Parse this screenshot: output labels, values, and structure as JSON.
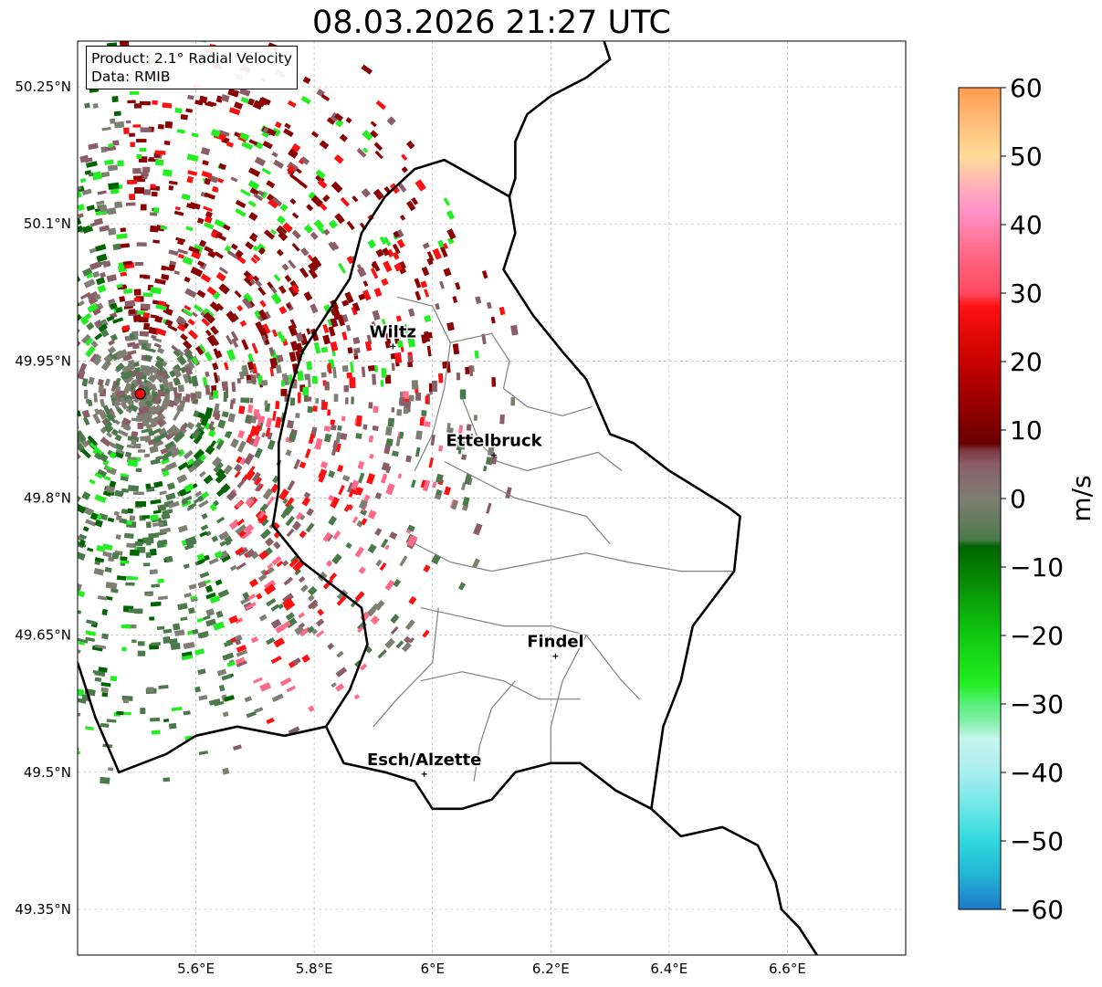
{
  "title": "08.03.2026 21:27 UTC",
  "info_box": {
    "line1": "Product: 2.1° Radial Velocity",
    "line2": "Data: RMIB"
  },
  "map": {
    "lon_range": [
      5.4,
      6.8
    ],
    "lat_range": [
      49.3,
      50.3
    ],
    "lon_ticks": [
      {
        "value": 5.6,
        "label": "5.6°E"
      },
      {
        "value": 5.8,
        "label": "5.8°E"
      },
      {
        "value": 6.0,
        "label": "6°E"
      },
      {
        "value": 6.2,
        "label": "6.2°E"
      },
      {
        "value": 6.4,
        "label": "6.4°E"
      },
      {
        "value": 6.6,
        "label": "6.6°E"
      }
    ],
    "lat_ticks": [
      {
        "value": 49.35,
        "label": "49.35°N"
      },
      {
        "value": 49.5,
        "label": "49.5°N"
      },
      {
        "value": 49.65,
        "label": "49.65°N"
      },
      {
        "value": 49.8,
        "label": "49.8°N"
      },
      {
        "value": 49.95,
        "label": "49.95°N"
      },
      {
        "value": 50.1,
        "label": "50.1°N"
      },
      {
        "value": 50.25,
        "label": "50.25°N"
      }
    ],
    "grid": true,
    "radar_site": {
      "lon": 5.506,
      "lat": 49.914
    },
    "cities": [
      {
        "name": "Wiltz",
        "lon": 5.933,
        "lat": 49.966
      },
      {
        "name": "Ettelbruck",
        "lon": 6.104,
        "lat": 49.847
      },
      {
        "name": "Findel",
        "lon": 6.208,
        "lat": 49.627
      },
      {
        "name": "Esch/Alzette",
        "lon": 5.986,
        "lat": 49.498
      }
    ],
    "country_border": [
      [
        6.13,
        50.13
      ],
      [
        6.02,
        50.17
      ],
      [
        5.97,
        50.16
      ],
      [
        5.92,
        50.13
      ],
      [
        5.88,
        50.09
      ],
      [
        5.86,
        50.04
      ],
      [
        5.83,
        50.01
      ],
      [
        5.78,
        49.96
      ],
      [
        5.76,
        49.92
      ],
      [
        5.74,
        49.86
      ],
      [
        5.74,
        49.81
      ],
      [
        5.73,
        49.77
      ],
      [
        5.78,
        49.73
      ],
      [
        5.82,
        49.71
      ],
      [
        5.88,
        49.68
      ],
      [
        5.89,
        49.64
      ],
      [
        5.86,
        49.59
      ],
      [
        5.82,
        49.55
      ],
      [
        5.75,
        49.54
      ],
      [
        5.67,
        49.55
      ],
      [
        5.6,
        49.54
      ],
      [
        5.55,
        49.52
      ],
      [
        5.47,
        49.5
      ],
      [
        5.43,
        49.56
      ],
      [
        5.4,
        49.62
      ]
    ],
    "lux_east_border": [
      [
        6.13,
        50.13
      ],
      [
        6.14,
        50.09
      ],
      [
        6.12,
        50.05
      ],
      [
        6.17,
        50.0
      ],
      [
        6.22,
        49.96
      ],
      [
        6.26,
        49.93
      ],
      [
        6.3,
        49.87
      ],
      [
        6.34,
        49.86
      ],
      [
        6.4,
        49.83
      ],
      [
        6.45,
        49.81
      ],
      [
        6.5,
        49.79
      ],
      [
        6.52,
        49.78
      ],
      [
        6.51,
        49.72
      ],
      [
        6.44,
        49.66
      ],
      [
        6.42,
        49.6
      ],
      [
        6.39,
        49.55
      ],
      [
        6.37,
        49.46
      ],
      [
        6.31,
        49.48
      ],
      [
        6.25,
        49.51
      ],
      [
        6.2,
        49.51
      ],
      [
        6.14,
        49.5
      ],
      [
        6.1,
        49.47
      ],
      [
        6.05,
        49.46
      ],
      [
        6.0,
        49.46
      ],
      [
        5.97,
        49.49
      ],
      [
        5.92,
        49.5
      ],
      [
        5.85,
        49.51
      ],
      [
        5.82,
        49.55
      ]
    ],
    "germany_border": [
      [
        6.29,
        50.3
      ],
      [
        6.3,
        50.28
      ],
      [
        6.26,
        50.26
      ],
      [
        6.2,
        50.24
      ],
      [
        6.16,
        50.22
      ],
      [
        6.14,
        50.19
      ],
      [
        6.14,
        50.15
      ],
      [
        6.13,
        50.13
      ]
    ],
    "moselle_border": [
      [
        6.37,
        49.46
      ],
      [
        6.42,
        49.43
      ],
      [
        6.49,
        49.44
      ],
      [
        6.55,
        49.42
      ],
      [
        6.58,
        49.38
      ],
      [
        6.59,
        49.35
      ],
      [
        6.62,
        49.33
      ],
      [
        6.65,
        49.3
      ]
    ],
    "canton_borders": [
      [
        [
          5.94,
          50.02
        ],
        [
          6.0,
          50.01
        ],
        [
          6.03,
          49.97
        ],
        [
          6.02,
          49.92
        ],
        [
          6.0,
          49.87
        ],
        [
          5.97,
          49.83
        ]
      ],
      [
        [
          6.03,
          49.97
        ],
        [
          6.1,
          49.98
        ],
        [
          6.13,
          49.95
        ],
        [
          6.12,
          49.92
        ],
        [
          6.16,
          49.9
        ],
        [
          6.22,
          49.89
        ],
        [
          6.27,
          49.9
        ]
      ],
      [
        [
          6.05,
          49.91
        ],
        [
          6.08,
          49.86
        ],
        [
          6.11,
          49.84
        ],
        [
          6.16,
          49.83
        ],
        [
          6.22,
          49.84
        ],
        [
          6.28,
          49.85
        ],
        [
          6.32,
          49.83
        ]
      ],
      [
        [
          6.02,
          49.84
        ],
        [
          6.08,
          49.82
        ],
        [
          6.14,
          49.8
        ],
        [
          6.2,
          49.79
        ],
        [
          6.26,
          49.78
        ],
        [
          6.3,
          49.75
        ]
      ],
      [
        [
          5.97,
          49.75
        ],
        [
          6.03,
          49.73
        ],
        [
          6.1,
          49.72
        ],
        [
          6.18,
          49.73
        ],
        [
          6.26,
          49.74
        ],
        [
          6.33,
          49.73
        ],
        [
          6.42,
          49.72
        ],
        [
          6.51,
          49.72
        ]
      ],
      [
        [
          5.98,
          49.68
        ],
        [
          6.05,
          49.67
        ],
        [
          6.12,
          49.66
        ],
        [
          6.2,
          49.66
        ],
        [
          6.26,
          49.65
        ],
        [
          6.32,
          49.6
        ],
        [
          6.35,
          49.58
        ]
      ],
      [
        [
          6.01,
          49.68
        ],
        [
          6.0,
          49.62
        ],
        [
          5.94,
          49.58
        ],
        [
          5.9,
          49.55
        ]
      ],
      [
        [
          6.14,
          49.6
        ],
        [
          6.1,
          49.57
        ],
        [
          6.08,
          49.53
        ],
        [
          6.07,
          49.49
        ]
      ],
      [
        [
          6.26,
          49.65
        ],
        [
          6.22,
          49.6
        ],
        [
          6.2,
          49.55
        ],
        [
          6.2,
          49.51
        ]
      ],
      [
        [
          5.98,
          49.6
        ],
        [
          6.05,
          49.61
        ],
        [
          6.12,
          49.6
        ],
        [
          6.18,
          49.58
        ],
        [
          6.25,
          49.58
        ]
      ]
    ]
  },
  "colorbar": {
    "label": "m/s",
    "vmin": -60,
    "vmax": 60,
    "ticks": [
      {
        "value": 60,
        "label": "60"
      },
      {
        "value": 50,
        "label": "50"
      },
      {
        "value": 40,
        "label": "40"
      },
      {
        "value": 30,
        "label": "30"
      },
      {
        "value": 20,
        "label": "20"
      },
      {
        "value": 10,
        "label": "10"
      },
      {
        "value": 0,
        "label": "0"
      },
      {
        "value": -10,
        "label": "−10"
      },
      {
        "value": -20,
        "label": "−20"
      },
      {
        "value": -30,
        "label": "−30"
      },
      {
        "value": -40,
        "label": "−40"
      },
      {
        "value": -50,
        "label": "−50"
      },
      {
        "value": -60,
        "label": "−60"
      }
    ],
    "stops": [
      {
        "value": -60,
        "color": "#1f78c8"
      },
      {
        "value": -55,
        "color": "#22b4d4"
      },
      {
        "value": -50,
        "color": "#2fd8dc"
      },
      {
        "value": -45,
        "color": "#6ee6e6"
      },
      {
        "value": -40,
        "color": "#a8eeee"
      },
      {
        "value": -35,
        "color": "#c8f4ee"
      },
      {
        "value": -33,
        "color": "#8ff0b0"
      },
      {
        "value": -30,
        "color": "#55f07a"
      },
      {
        "value": -27,
        "color": "#22ee22"
      },
      {
        "value": -20,
        "color": "#10c810"
      },
      {
        "value": -14,
        "color": "#0a9a0a"
      },
      {
        "value": -7,
        "color": "#006400"
      },
      {
        "value": -6,
        "color": "#4a7a4a"
      },
      {
        "value": 0,
        "color": "#7e7e72"
      },
      {
        "value": 5,
        "color": "#8a5e66"
      },
      {
        "value": 7,
        "color": "#7a3a44"
      },
      {
        "value": 8,
        "color": "#6a0000"
      },
      {
        "value": 20,
        "color": "#c80000"
      },
      {
        "value": 28,
        "color": "#ff1010"
      },
      {
        "value": 30,
        "color": "#ff4860"
      },
      {
        "value": 36,
        "color": "#ff6a88"
      },
      {
        "value": 42,
        "color": "#ff92c8"
      },
      {
        "value": 46,
        "color": "#ffb4b8"
      },
      {
        "value": 50,
        "color": "#ffdc98"
      },
      {
        "value": 55,
        "color": "#ffbc78"
      },
      {
        "value": 60,
        "color": "#ff9c50"
      }
    ]
  },
  "radar_gates": {
    "description_colors": {
      "inbound_dark": "#006400",
      "inbound_mid": "#4a7a4a",
      "inbound_bright": "#22ee22",
      "zero": "#7e7e72",
      "outbound_low": "#8a5e66",
      "outbound_dark": "#8b0000",
      "outbound_bright": "#ff1010",
      "outbound_pink": "#ff6a88"
    }
  }
}
